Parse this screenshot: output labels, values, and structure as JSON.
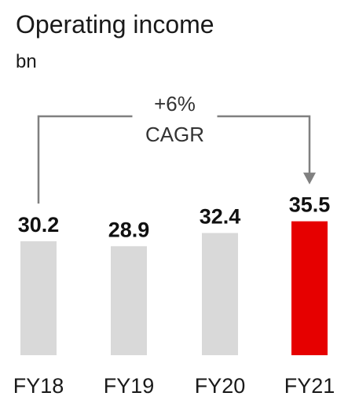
{
  "chart_data": {
    "type": "bar",
    "title": "Operating income",
    "unit": "bn",
    "categories": [
      "FY18",
      "FY19",
      "FY20",
      "FY21"
    ],
    "values": [
      30.2,
      28.9,
      32.4,
      35.5
    ],
    "value_labels": [
      "30.2",
      "28.9",
      "32.4",
      "35.5"
    ],
    "bar_colors": [
      "#d9d9d9",
      "#d9d9d9",
      "#d9d9d9",
      "#e60000"
    ],
    "annotation": {
      "line1": "+6%",
      "line2": "CAGR",
      "from": "FY18",
      "to": "FY21",
      "color": "#808080"
    },
    "grid": false,
    "legend": "none"
  }
}
